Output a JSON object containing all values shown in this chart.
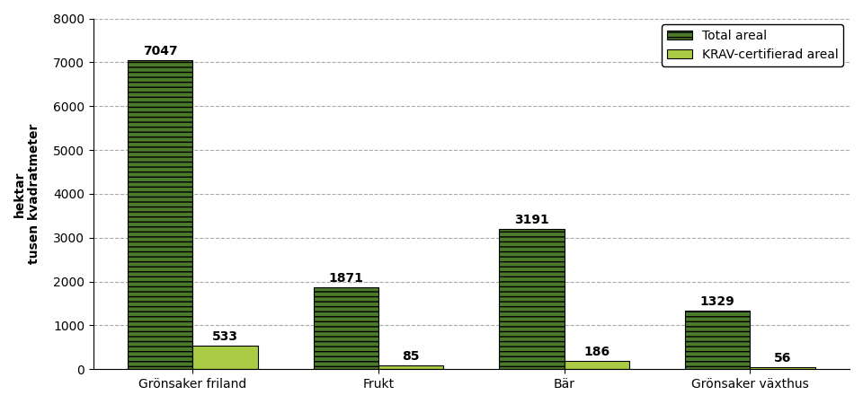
{
  "categories": [
    "Grönsaker friland",
    "Frukt",
    "Bär",
    "Grönsaker växthus"
  ],
  "total_values": [
    7047,
    1871,
    3191,
    1329
  ],
  "krav_values": [
    533,
    85,
    186,
    56
  ],
  "ylabel_top": "hektar",
  "ylabel_bottom": "tusen kvadratmeter",
  "ylim": [
    0,
    8000
  ],
  "yticks": [
    0,
    1000,
    2000,
    3000,
    4000,
    5000,
    6000,
    7000,
    8000
  ],
  "legend_total": "Total areal",
  "legend_krav": "KRAV-certifierad areal",
  "color_total": "#4a7a2a",
  "color_krav": "#aacc44",
  "bar_width": 0.35,
  "hatch_total": "---",
  "grid_color": "#aaaaaa",
  "title_fontsize": 11,
  "label_fontsize": 10,
  "tick_fontsize": 10,
  "value_fontsize": 10
}
